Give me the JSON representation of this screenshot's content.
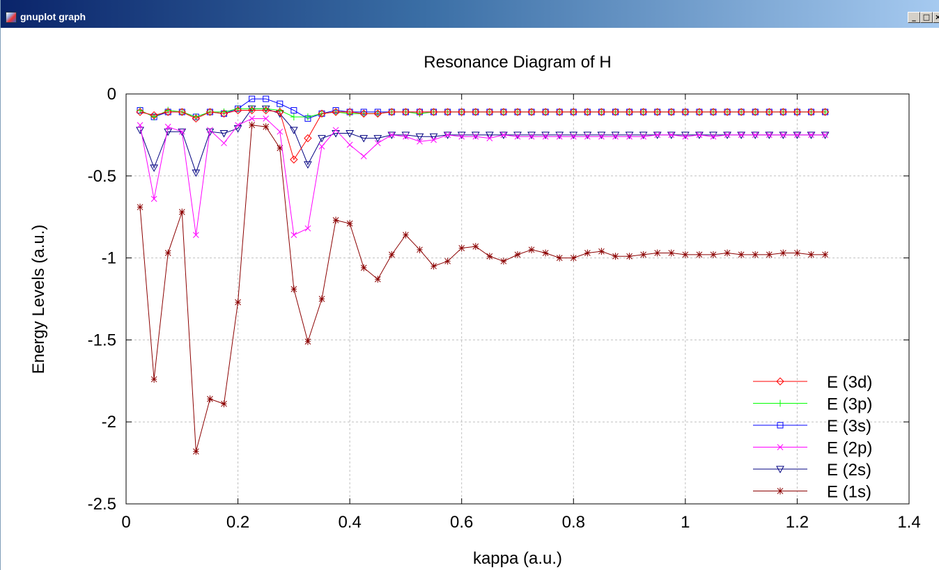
{
  "window": {
    "title": "gnuplot graph",
    "minimize": "_",
    "maximize": "□",
    "close": "×"
  },
  "chart_data": {
    "type": "line",
    "title": "Resonance Diagram of H",
    "xlabel": "kappa (a.u.)",
    "ylabel": "Energy Levels (a.u.)",
    "xlim": [
      0,
      1.4
    ],
    "ylim": [
      -2.5,
      0
    ],
    "xticks": [
      0,
      0.2,
      0.4,
      0.6,
      0.8,
      1,
      1.2,
      1.4
    ],
    "xtick_labels": [
      "0",
      "0.2",
      "0.4",
      "0.6",
      "0.8",
      "1",
      "1.2",
      "1.4"
    ],
    "yticks": [
      0,
      -0.5,
      -1,
      -1.5,
      -2,
      -2.5
    ],
    "ytick_labels": [
      "0",
      "-0.5",
      "-1",
      "-1.5",
      "-2",
      "-2.5"
    ],
    "grid": true,
    "legend_position": "bottom-right",
    "x": [
      0.025,
      0.05,
      0.075,
      0.1,
      0.125,
      0.15,
      0.175,
      0.2,
      0.225,
      0.25,
      0.275,
      0.3,
      0.325,
      0.35,
      0.375,
      0.4,
      0.425,
      0.45,
      0.475,
      0.5,
      0.525,
      0.55,
      0.575,
      0.6,
      0.625,
      0.65,
      0.675,
      0.7,
      0.725,
      0.75,
      0.775,
      0.8,
      0.825,
      0.85,
      0.875,
      0.9,
      0.925,
      0.95,
      0.975,
      1.0,
      1.025,
      1.05,
      1.075,
      1.1,
      1.125,
      1.15,
      1.175,
      1.2,
      1.225,
      1.25
    ],
    "series": [
      {
        "name": "E (3d)",
        "color": "#ff0000",
        "marker": "diamond",
        "values": [
          -0.11,
          -0.13,
          -0.11,
          -0.11,
          -0.15,
          -0.11,
          -0.12,
          -0.1,
          -0.1,
          -0.1,
          -0.11,
          -0.4,
          -0.27,
          -0.12,
          -0.11,
          -0.11,
          -0.12,
          -0.12,
          -0.11,
          -0.11,
          -0.11,
          -0.11,
          -0.11,
          -0.11,
          -0.11,
          -0.11,
          -0.11,
          -0.11,
          -0.11,
          -0.11,
          -0.11,
          -0.11,
          -0.11,
          -0.11,
          -0.11,
          -0.11,
          -0.11,
          -0.11,
          -0.11,
          -0.11,
          -0.11,
          -0.11,
          -0.11,
          -0.11,
          -0.11,
          -0.11,
          -0.11,
          -0.11,
          -0.11,
          -0.11
        ]
      },
      {
        "name": "E (3p)",
        "color": "#00ff00",
        "marker": "plus",
        "values": [
          -0.1,
          -0.14,
          -0.1,
          -0.11,
          -0.14,
          -0.11,
          -0.11,
          -0.09,
          -0.09,
          -0.09,
          -0.1,
          -0.14,
          -0.14,
          -0.12,
          -0.11,
          -0.12,
          -0.12,
          -0.12,
          -0.11,
          -0.11,
          -0.12,
          -0.11,
          -0.11,
          -0.11,
          -0.11,
          -0.11,
          -0.11,
          -0.11,
          -0.11,
          -0.11,
          -0.11,
          -0.11,
          -0.11,
          -0.11,
          -0.11,
          -0.11,
          -0.11,
          -0.11,
          -0.11,
          -0.11,
          -0.11,
          -0.11,
          -0.11,
          -0.11,
          -0.11,
          -0.11,
          -0.11,
          -0.11,
          -0.11,
          -0.11
        ]
      },
      {
        "name": "E (3s)",
        "color": "#0000ff",
        "marker": "square",
        "values": [
          -0.1,
          -0.14,
          -0.11,
          -0.11,
          -0.14,
          -0.11,
          -0.12,
          -0.09,
          -0.03,
          -0.03,
          -0.06,
          -0.1,
          -0.15,
          -0.12,
          -0.1,
          -0.11,
          -0.11,
          -0.11,
          -0.11,
          -0.11,
          -0.11,
          -0.11,
          -0.11,
          -0.11,
          -0.11,
          -0.11,
          -0.11,
          -0.11,
          -0.11,
          -0.11,
          -0.11,
          -0.11,
          -0.11,
          -0.11,
          -0.11,
          -0.11,
          -0.11,
          -0.11,
          -0.11,
          -0.11,
          -0.11,
          -0.11,
          -0.11,
          -0.11,
          -0.11,
          -0.11,
          -0.11,
          -0.11,
          -0.11,
          -0.11
        ]
      },
      {
        "name": "E (2p)",
        "color": "#ff00ff",
        "marker": "cross",
        "values": [
          -0.19,
          -0.64,
          -0.2,
          -0.23,
          -0.86,
          -0.22,
          -0.3,
          -0.19,
          -0.15,
          -0.15,
          -0.23,
          -0.86,
          -0.82,
          -0.32,
          -0.22,
          -0.31,
          -0.38,
          -0.3,
          -0.25,
          -0.26,
          -0.29,
          -0.28,
          -0.25,
          -0.26,
          -0.26,
          -0.27,
          -0.25,
          -0.26,
          -0.26,
          -0.26,
          -0.26,
          -0.26,
          -0.26,
          -0.26,
          -0.26,
          -0.26,
          -0.26,
          -0.25,
          -0.25,
          -0.26,
          -0.25,
          -0.26,
          -0.25,
          -0.25,
          -0.25,
          -0.25,
          -0.25,
          -0.25,
          -0.25,
          -0.25
        ]
      },
      {
        "name": "E (2s)",
        "color": "#000080",
        "marker": "triangle-down",
        "values": [
          -0.22,
          -0.45,
          -0.23,
          -0.23,
          -0.48,
          -0.23,
          -0.24,
          -0.21,
          -0.09,
          -0.09,
          -0.12,
          -0.22,
          -0.43,
          -0.27,
          -0.24,
          -0.24,
          -0.27,
          -0.27,
          -0.25,
          -0.25,
          -0.26,
          -0.26,
          -0.25,
          -0.25,
          -0.25,
          -0.25,
          -0.25,
          -0.25,
          -0.25,
          -0.25,
          -0.25,
          -0.25,
          -0.25,
          -0.25,
          -0.25,
          -0.25,
          -0.25,
          -0.25,
          -0.25,
          -0.25,
          -0.25,
          -0.25,
          -0.25,
          -0.25,
          -0.25,
          -0.25,
          -0.25,
          -0.25,
          -0.25,
          -0.25
        ]
      },
      {
        "name": "E (1s)",
        "color": "#8b0000",
        "marker": "star",
        "values": [
          -0.69,
          -1.74,
          -0.97,
          -0.72,
          -2.18,
          -1.86,
          -1.89,
          -1.27,
          -0.19,
          -0.2,
          -0.33,
          -1.19,
          -1.51,
          -1.25,
          -0.77,
          -0.79,
          -1.06,
          -1.13,
          -0.98,
          -0.86,
          -0.95,
          -1.05,
          -1.02,
          -0.94,
          -0.93,
          -0.99,
          -1.02,
          -0.98,
          -0.95,
          -0.97,
          -1.0,
          -1.0,
          -0.97,
          -0.96,
          -0.99,
          -0.99,
          -0.98,
          -0.97,
          -0.97,
          -0.98,
          -0.98,
          -0.98,
          -0.97,
          -0.98,
          -0.98,
          -0.98,
          -0.97,
          -0.97,
          -0.98,
          -0.98
        ]
      }
    ]
  }
}
